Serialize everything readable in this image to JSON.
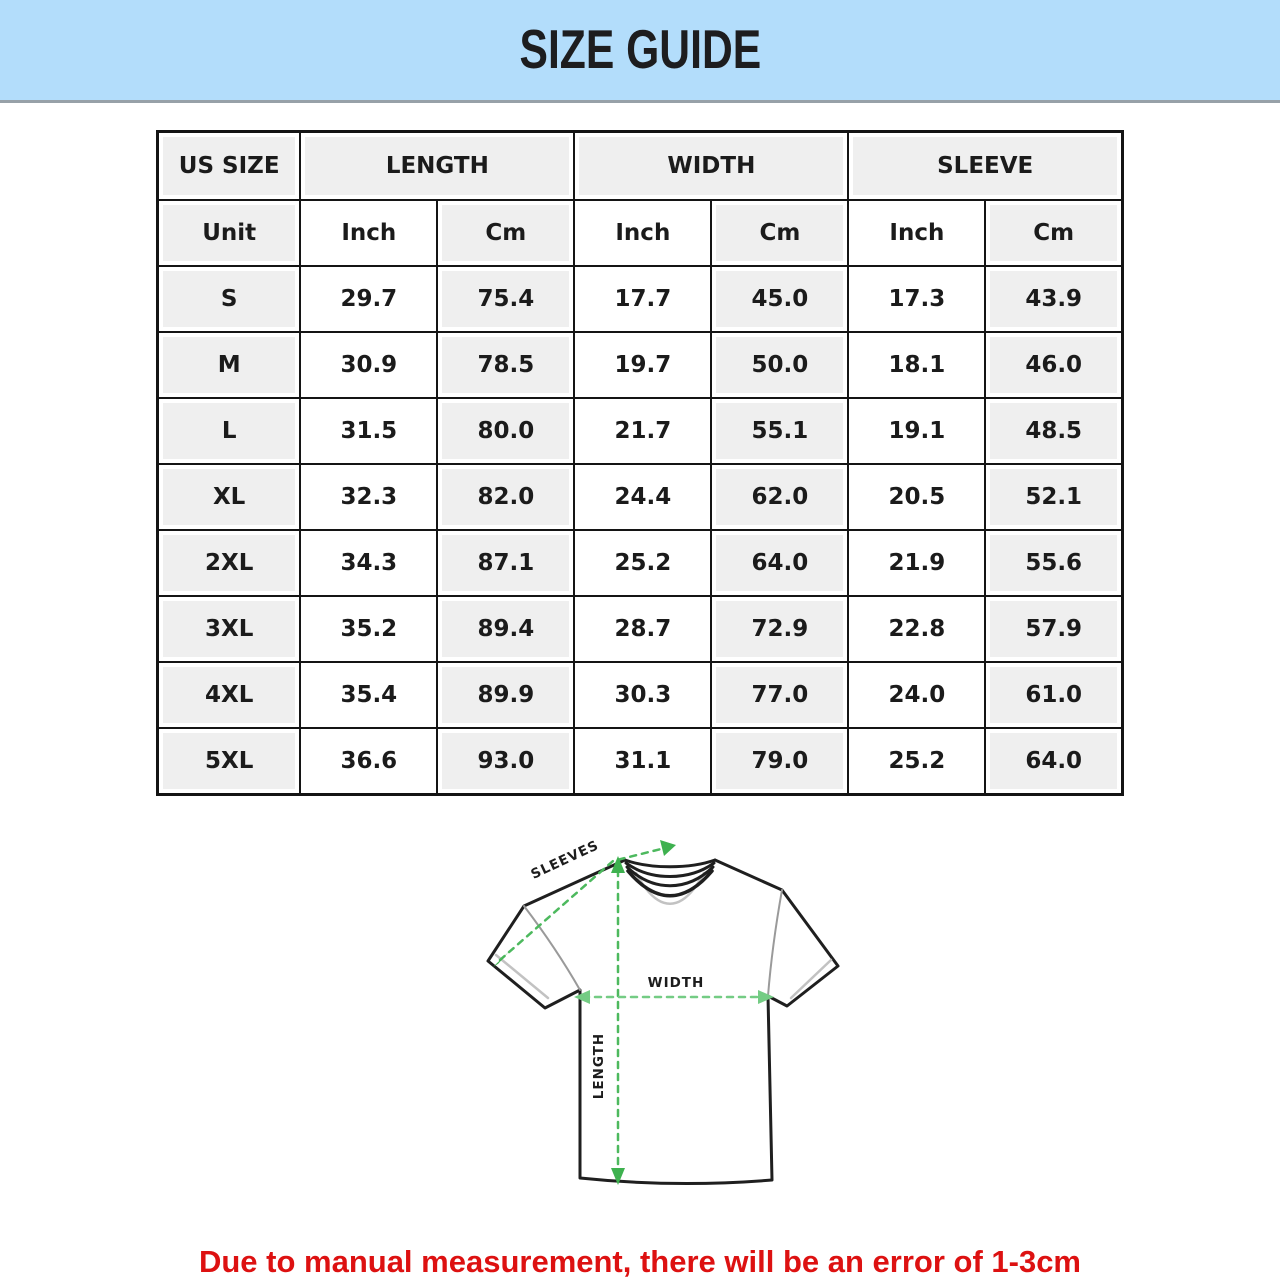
{
  "banner": {
    "title": "SIZE GUIDE",
    "bg_color": "#b3ddfb"
  },
  "table": {
    "group_headers": [
      {
        "label": "US SIZE",
        "span": 1
      },
      {
        "label": "LENGTH",
        "span": 2
      },
      {
        "label": "WIDTH",
        "span": 2
      },
      {
        "label": "SLEEVE",
        "span": 2
      }
    ],
    "unit_row": [
      "Unit",
      "Inch",
      "Cm",
      "Inch",
      "Cm",
      "Inch",
      "Cm"
    ],
    "rows": [
      {
        "size": "S",
        "values": [
          "29.7",
          "75.4",
          "17.7",
          "45.0",
          "17.3",
          "43.9"
        ]
      },
      {
        "size": "M",
        "values": [
          "30.9",
          "78.5",
          "19.7",
          "50.0",
          "18.1",
          "46.0"
        ]
      },
      {
        "size": "L",
        "values": [
          "31.5",
          "80.0",
          "21.7",
          "55.1",
          "19.1",
          "48.5"
        ]
      },
      {
        "size": "XL",
        "values": [
          "32.3",
          "82.0",
          "24.4",
          "62.0",
          "20.5",
          "52.1"
        ]
      },
      {
        "size": "2XL",
        "values": [
          "34.3",
          "87.1",
          "25.2",
          "64.0",
          "21.9",
          "55.6"
        ]
      },
      {
        "size": "3XL",
        "values": [
          "35.2",
          "89.4",
          "28.7",
          "72.9",
          "22.8",
          "57.9"
        ]
      },
      {
        "size": "4XL",
        "values": [
          "35.4",
          "89.9",
          "30.3",
          "77.0",
          "24.0",
          "61.0"
        ]
      },
      {
        "size": "5XL",
        "values": [
          "36.6",
          "93.0",
          "31.1",
          "79.0",
          "25.2",
          "64.0"
        ]
      }
    ]
  },
  "diagram": {
    "labels": {
      "sleeves": "SLEEVES",
      "width": "WIDTH",
      "length": "LENGTH"
    },
    "arrow_color": "#4db95e"
  },
  "note": {
    "text": "Due to manual measurement, there will be an error of 1-3cm",
    "color": "#dd1111"
  }
}
